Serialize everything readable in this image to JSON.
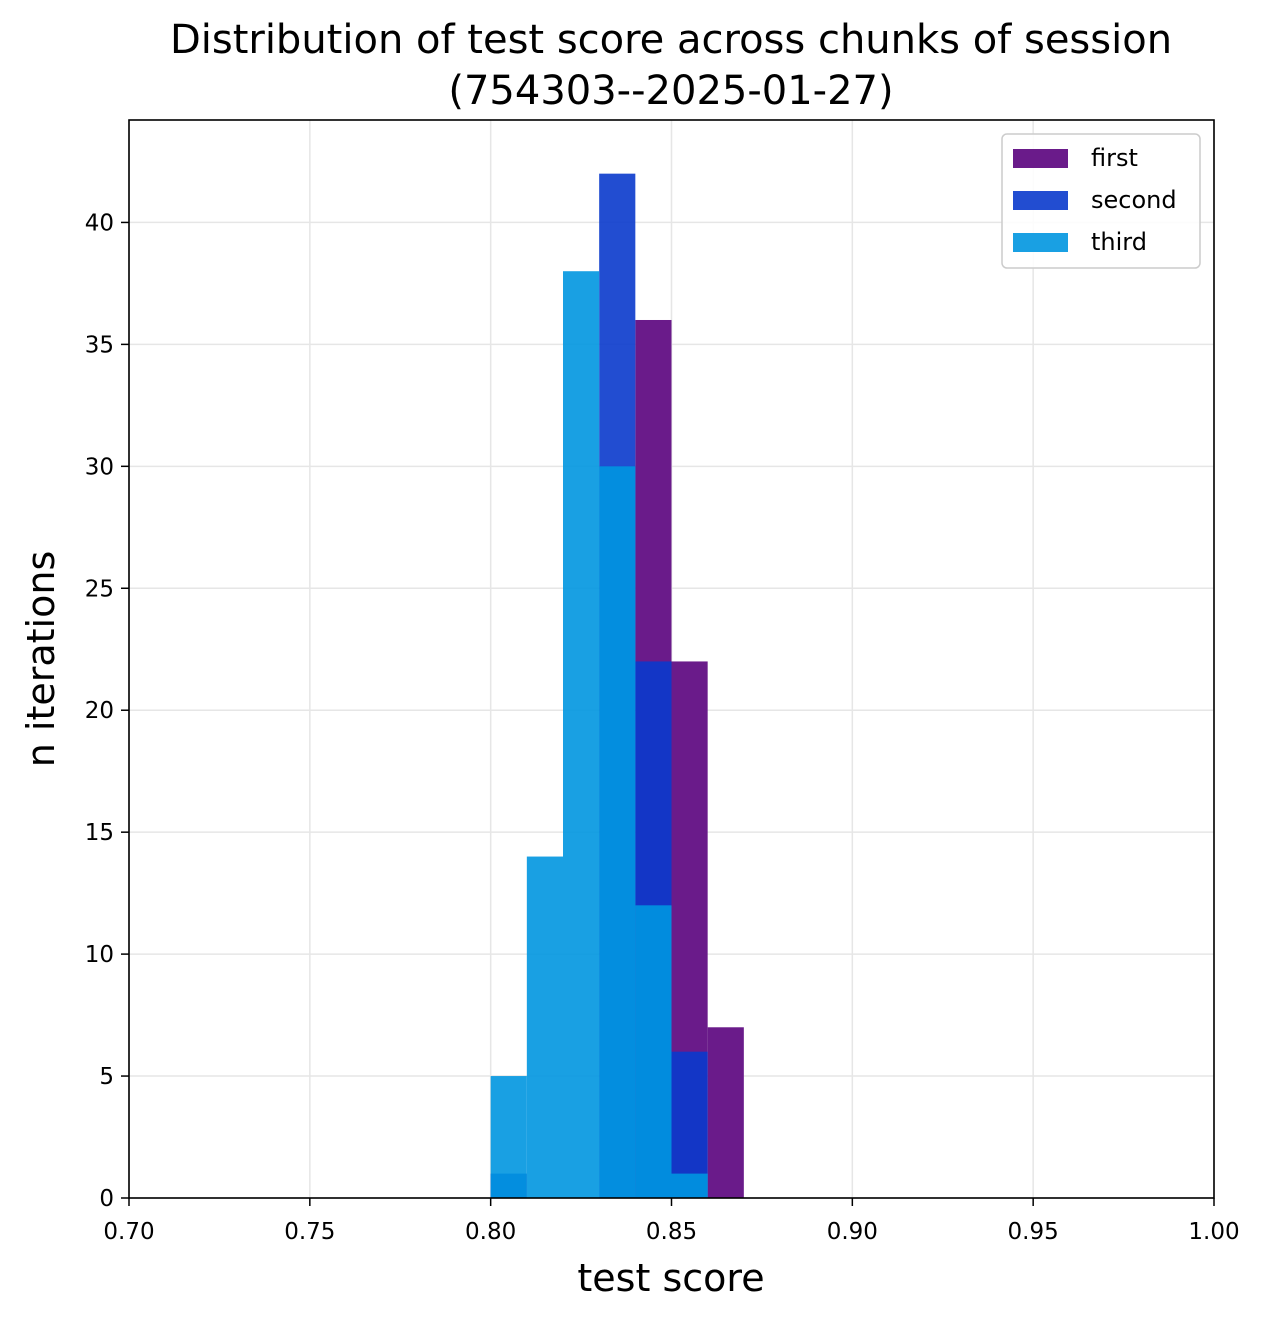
{
  "chart_data": {
    "type": "bar",
    "subtype": "histogram",
    "title": "Distribution of test score across chunks of session",
    "subtitle": "(754303--2025-01-27)",
    "xlabel": "test score",
    "ylabel": "n iterations",
    "xlim": [
      0.7,
      1.0
    ],
    "ylim": [
      0,
      44.2
    ],
    "xticks": [
      "0.70",
      "0.75",
      "0.80",
      "0.85",
      "0.90",
      "0.95",
      "1.00"
    ],
    "yticks": [
      "0",
      "5",
      "10",
      "15",
      "20",
      "25",
      "30",
      "35",
      "40"
    ],
    "grid": true,
    "legend_position": "top-right",
    "bin_width": 0.01,
    "bin_starts": [
      0.8,
      0.81,
      0.82,
      0.83,
      0.84,
      0.85,
      0.86
    ],
    "series": [
      {
        "name": "first",
        "color": "#6a1b8a",
        "opacity": 1.0,
        "values": [
          0,
          0,
          0,
          0,
          36,
          22,
          7
        ]
      },
      {
        "name": "second",
        "color": "#0a3acc",
        "opacity": 0.9,
        "values": [
          1,
          0,
          0,
          42,
          22,
          6,
          0
        ]
      },
      {
        "name": "third",
        "color": "#0096e0",
        "opacity": 0.9,
        "values": [
          5,
          14,
          38,
          30,
          12,
          1,
          0
        ]
      }
    ]
  }
}
